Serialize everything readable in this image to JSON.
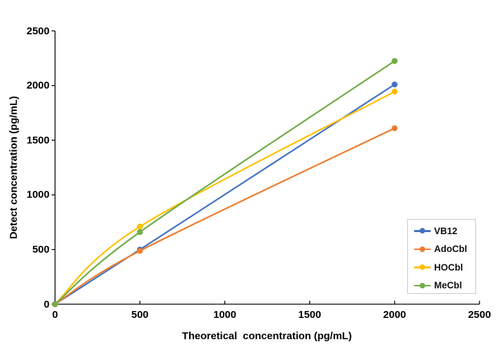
{
  "chart_data": {
    "type": "line",
    "title": "",
    "xlabel": "Theoretical  concentration (pg/mL)",
    "ylabel": "Detect concentration (pg/mL)",
    "x": [
      0,
      500,
      2000
    ],
    "series": [
      {
        "name": "VB12",
        "color": "#4472c4",
        "values": [
          0,
          500,
          2010
        ]
      },
      {
        "name": "AdoCbl",
        "color": "#ed7d31",
        "values": [
          0,
          488,
          1610
        ]
      },
      {
        "name": "HOCbl",
        "color": "#ffc000",
        "values": [
          0,
          710,
          1945
        ]
      },
      {
        "name": "MeCbl",
        "color": "#70ad47",
        "values": [
          0,
          660,
          2225
        ]
      }
    ],
    "xlim": [
      0,
      2500
    ],
    "ylim": [
      0,
      2500
    ],
    "x_ticks": [
      0,
      500,
      1000,
      1500,
      2000,
      2500
    ],
    "y_ticks": [
      0,
      500,
      1000,
      1500,
      2000,
      2500
    ],
    "grid": false,
    "line_style": "smooth",
    "marker": "circle",
    "legend_position": "right-middle",
    "axis_color": "#000000",
    "legend_border_color": "#c9c9c9",
    "background_color": "#ffffff"
  }
}
